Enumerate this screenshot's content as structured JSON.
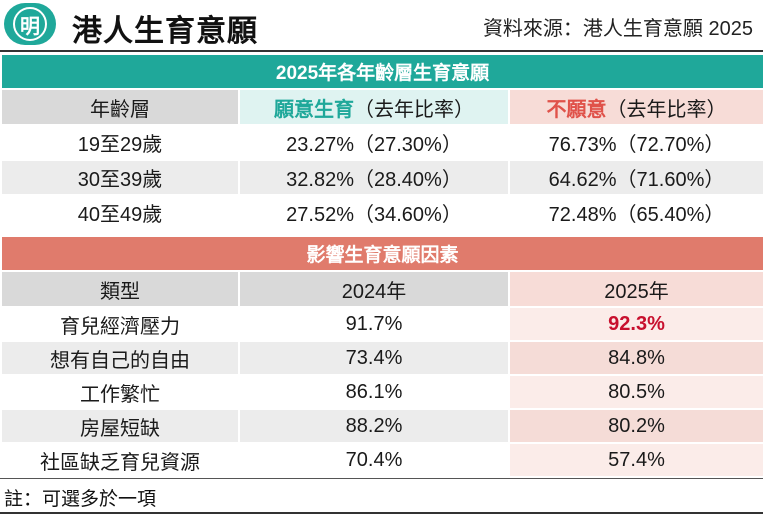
{
  "header": {
    "logo_char": "明",
    "title": "港人生育意願",
    "source": "資料來源：港人生育意願 2025"
  },
  "table1": {
    "section_title": "2025年各年齡層生育意願",
    "columns": {
      "age": "年齡層",
      "willing": "願意生育",
      "willing_suffix": "（去年比率）",
      "unwilling": "不願意",
      "unwilling_suffix": "（去年比率）"
    },
    "rows": [
      {
        "age": "19至29歲",
        "willing": "23.27%",
        "willing_prev": "（27.30%）",
        "unwilling": "76.73%",
        "unwilling_prev": "（72.70%）"
      },
      {
        "age": "30至39歲",
        "willing": "32.82%",
        "willing_prev": "（28.40%）",
        "unwilling": "64.62%",
        "unwilling_prev": "（71.60%）"
      },
      {
        "age": "40至49歲",
        "willing": "27.52%",
        "willing_prev": "（34.60%）",
        "unwilling": "72.48%",
        "unwilling_prev": "（65.40%）"
      }
    ]
  },
  "table2": {
    "section_title": "影響生育意願因素",
    "columns": {
      "type": "類型",
      "y2024": "2024年",
      "y2025": "2025年"
    },
    "rows": [
      {
        "type": "育兒經濟壓力",
        "y2024": "91.7%",
        "y2025": "92.3%"
      },
      {
        "type": "想有自己的自由",
        "y2024": "73.4%",
        "y2025": "84.8%"
      },
      {
        "type": "工作繁忙",
        "y2024": "86.1%",
        "y2025": "80.5%"
      },
      {
        "type": "房屋短缺",
        "y2024": "88.2%",
        "y2025": "80.2%"
      },
      {
        "type": "社區缺乏育兒資源",
        "y2024": "70.4%",
        "y2025": "57.4%"
      }
    ]
  },
  "note": "註：可選多於一項",
  "colors": {
    "teal": "#1fa89a",
    "salmon": "#e07b6c",
    "highlight_red": "#c8102e"
  }
}
